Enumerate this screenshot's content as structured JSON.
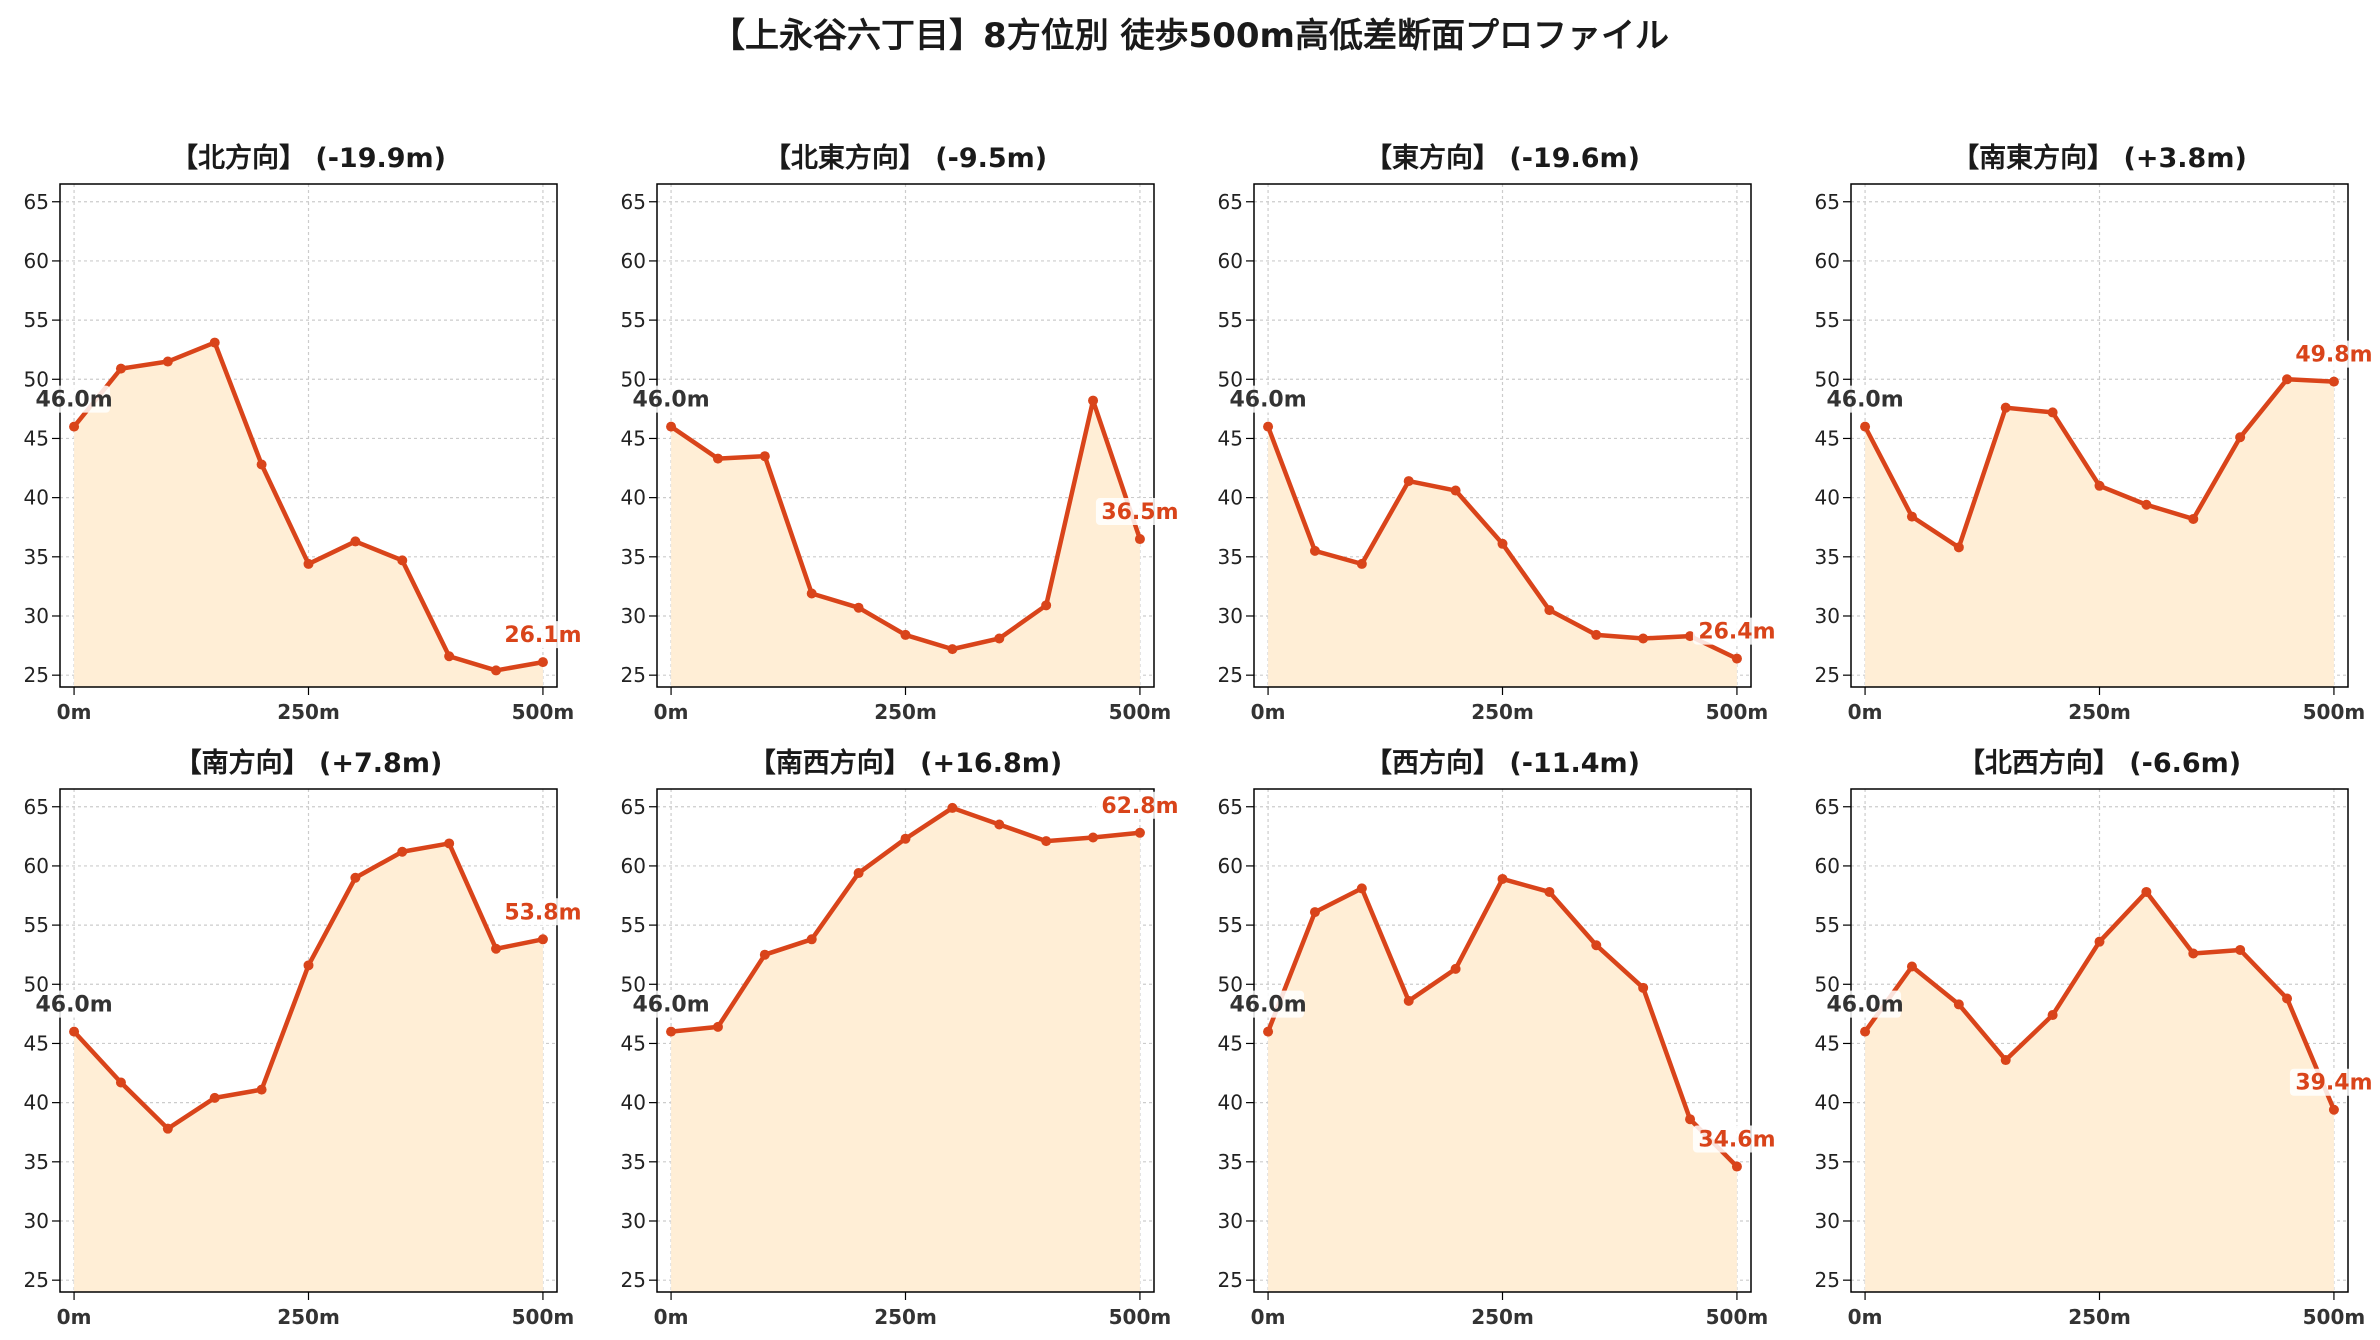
{
  "figure": {
    "title": "【上永谷六丁目】8方位別 徒歩500m高低差断面プロファイル"
  },
  "colors": {
    "line": "#d9441a",
    "fill": "#ffeed6",
    "grid": "#cccccc",
    "start_label": "#333333",
    "end_label": "#d9441a"
  },
  "chart_data": [
    {
      "type": "area",
      "title": "【北方向】 (-19.9m)",
      "x": [
        0,
        50,
        100,
        150,
        200,
        250,
        300,
        350,
        400,
        450,
        500
      ],
      "values": [
        46.0,
        50.9,
        51.5,
        53.1,
        42.8,
        34.4,
        36.3,
        34.7,
        26.6,
        25.4,
        26.1
      ],
      "xticks": [
        "0m",
        "250m",
        "500m"
      ],
      "xtick_values": [
        0,
        250,
        500
      ],
      "yticks": [
        25,
        30,
        35,
        40,
        45,
        50,
        55,
        60,
        65
      ],
      "ylim": [
        24,
        66.5
      ],
      "xlim": [
        -15,
        515
      ],
      "start_label": "46.0m",
      "end_label": "26.1m",
      "grid": true
    },
    {
      "type": "area",
      "title": "【北東方向】 (-9.5m)",
      "x": [
        0,
        50,
        100,
        150,
        200,
        250,
        300,
        350,
        400,
        450,
        500
      ],
      "values": [
        46.0,
        43.3,
        43.5,
        31.9,
        30.7,
        28.4,
        27.2,
        28.1,
        30.9,
        48.2,
        36.5
      ],
      "xticks": [
        "0m",
        "250m",
        "500m"
      ],
      "xtick_values": [
        0,
        250,
        500
      ],
      "yticks": [
        25,
        30,
        35,
        40,
        45,
        50,
        55,
        60,
        65
      ],
      "ylim": [
        24,
        66.5
      ],
      "xlim": [
        -15,
        515
      ],
      "start_label": "46.0m",
      "end_label": "36.5m",
      "grid": true
    },
    {
      "type": "area",
      "title": "【東方向】 (-19.6m)",
      "x": [
        0,
        50,
        100,
        150,
        200,
        250,
        300,
        350,
        400,
        450,
        500
      ],
      "values": [
        46.0,
        35.5,
        34.4,
        41.4,
        40.6,
        36.1,
        30.5,
        28.4,
        28.1,
        28.3,
        26.4
      ],
      "xticks": [
        "0m",
        "250m",
        "500m"
      ],
      "xtick_values": [
        0,
        250,
        500
      ],
      "yticks": [
        25,
        30,
        35,
        40,
        45,
        50,
        55,
        60,
        65
      ],
      "ylim": [
        24,
        66.5
      ],
      "xlim": [
        -15,
        515
      ],
      "start_label": "46.0m",
      "end_label": "26.4m",
      "grid": true
    },
    {
      "type": "area",
      "title": "【南東方向】 (+3.8m)",
      "x": [
        0,
        50,
        100,
        150,
        200,
        250,
        300,
        350,
        400,
        450,
        500
      ],
      "values": [
        46.0,
        38.4,
        35.8,
        47.6,
        47.2,
        41.0,
        39.4,
        38.2,
        45.1,
        50.0,
        49.8
      ],
      "xticks": [
        "0m",
        "250m",
        "500m"
      ],
      "xtick_values": [
        0,
        250,
        500
      ],
      "yticks": [
        25,
        30,
        35,
        40,
        45,
        50,
        55,
        60,
        65
      ],
      "ylim": [
        24,
        66.5
      ],
      "xlim": [
        -15,
        515
      ],
      "start_label": "46.0m",
      "end_label": "49.8m",
      "grid": true
    },
    {
      "type": "area",
      "title": "【南方向】 (+7.8m)",
      "x": [
        0,
        50,
        100,
        150,
        200,
        250,
        300,
        350,
        400,
        450,
        500
      ],
      "values": [
        46.0,
        41.7,
        37.8,
        40.4,
        41.1,
        51.6,
        59.0,
        61.2,
        61.9,
        53.0,
        53.8
      ],
      "xticks": [
        "0m",
        "250m",
        "500m"
      ],
      "xtick_values": [
        0,
        250,
        500
      ],
      "yticks": [
        25,
        30,
        35,
        40,
        45,
        50,
        55,
        60,
        65
      ],
      "ylim": [
        24,
        66.5
      ],
      "xlim": [
        -15,
        515
      ],
      "start_label": "46.0m",
      "end_label": "53.8m",
      "grid": true
    },
    {
      "type": "area",
      "title": "【南西方向】 (+16.8m)",
      "x": [
        0,
        50,
        100,
        150,
        200,
        250,
        300,
        350,
        400,
        450,
        500
      ],
      "values": [
        46.0,
        46.4,
        52.5,
        53.8,
        59.4,
        62.3,
        64.9,
        63.5,
        62.1,
        62.4,
        62.8
      ],
      "xticks": [
        "0m",
        "250m",
        "500m"
      ],
      "xtick_values": [
        0,
        250,
        500
      ],
      "yticks": [
        25,
        30,
        35,
        40,
        45,
        50,
        55,
        60,
        65
      ],
      "ylim": [
        24,
        66.5
      ],
      "xlim": [
        -15,
        515
      ],
      "start_label": "46.0m",
      "end_label": "62.8m",
      "grid": true
    },
    {
      "type": "area",
      "title": "【西方向】 (-11.4m)",
      "x": [
        0,
        50,
        100,
        150,
        200,
        250,
        300,
        350,
        400,
        450,
        500
      ],
      "values": [
        46.0,
        56.1,
        58.1,
        48.6,
        51.3,
        58.9,
        57.8,
        53.3,
        49.7,
        38.6,
        34.6
      ],
      "xticks": [
        "0m",
        "250m",
        "500m"
      ],
      "xtick_values": [
        0,
        250,
        500
      ],
      "yticks": [
        25,
        30,
        35,
        40,
        45,
        50,
        55,
        60,
        65
      ],
      "ylim": [
        24,
        66.5
      ],
      "xlim": [
        -15,
        515
      ],
      "start_label": "46.0m",
      "end_label": "34.6m",
      "grid": true
    },
    {
      "type": "area",
      "title": "【北西方向】 (-6.6m)",
      "x": [
        0,
        50,
        100,
        150,
        200,
        250,
        300,
        350,
        400,
        450,
        500
      ],
      "values": [
        46.0,
        51.5,
        48.3,
        43.6,
        47.4,
        53.6,
        57.8,
        52.6,
        52.9,
        48.8,
        39.4
      ],
      "xticks": [
        "0m",
        "250m",
        "500m"
      ],
      "xtick_values": [
        0,
        250,
        500
      ],
      "yticks": [
        25,
        30,
        35,
        40,
        45,
        50,
        55,
        60,
        65
      ],
      "ylim": [
        24,
        66.5
      ],
      "xlim": [
        -15,
        515
      ],
      "start_label": "46.0m",
      "end_label": "39.4m",
      "grid": true
    }
  ]
}
